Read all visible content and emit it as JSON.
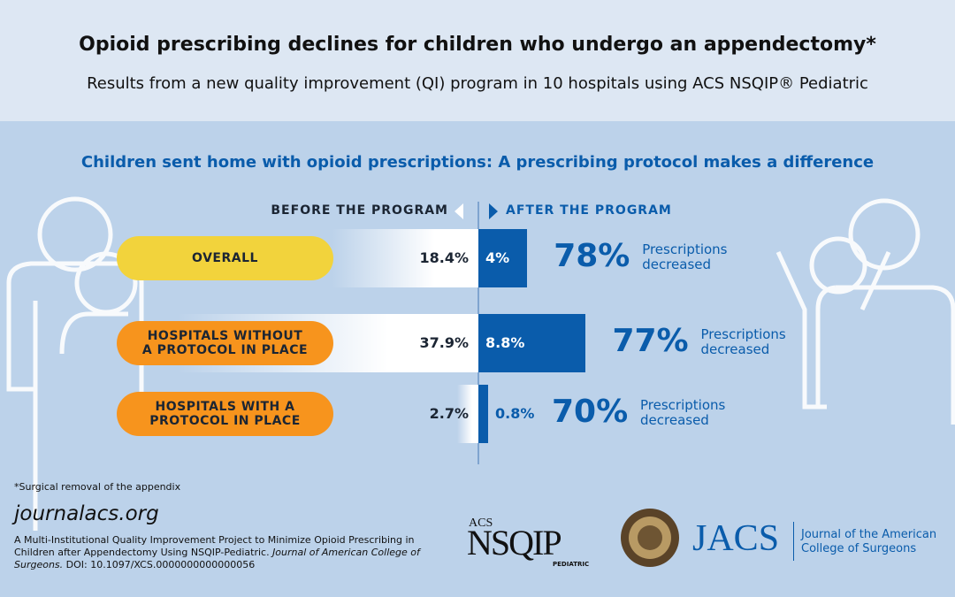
{
  "chart_data": {
    "type": "bar",
    "title": "Opioid prescribing declines for children who undergo an appendectomy*",
    "subtitle": "Results from a new quality improvement (QI) program in 10 hospitals using ACS NSQIP® Pediatric",
    "heading": "Children sent home with opioid prescriptions: A prescribing protocol makes a difference",
    "categories": [
      "OVERALL",
      "HOSPITALS WITHOUT A PROTOCOL IN PLACE",
      "HOSPITALS WITH A PROTOCOL IN PLACE"
    ],
    "category_colors": [
      "#f2d33c",
      "#f7941d",
      "#f7941d"
    ],
    "series": [
      {
        "name": "BEFORE THE PROGRAM",
        "color": "#ffffff",
        "values": [
          18.4,
          37.9,
          2.7
        ],
        "value_labels": [
          "18.4%",
          "37.9%",
          "2.7%"
        ]
      },
      {
        "name": "AFTER THE PROGRAM",
        "color": "#0a5cab",
        "values": [
          4,
          8.8,
          0.8
        ],
        "value_labels": [
          "4%",
          "8.8%",
          "0.8%"
        ]
      }
    ],
    "reduction": {
      "values": [
        78,
        77,
        70
      ],
      "value_labels": [
        "78%",
        "77%",
        "70%"
      ],
      "label": "Prescriptions decreased"
    },
    "footnote": "*Surgical removal of the appendix",
    "url": "journalacs.org",
    "citation": [
      "A Multi-Institutional Quality Improvement Project to Minimize Opioid Prescribing in Children after Appendectomy Using NSQIP-Pediatric. ",
      "Journal of American College of Surgeons.",
      " DOI: 10.1097/XCS.0000000000000056"
    ],
    "logos": {
      "acs": "ACS",
      "nsqip": "NSQIP",
      "pediatric": "PEDIATRIC",
      "jacs": "JACS",
      "journal": "Journal of the American College of Surgeons"
    }
  }
}
